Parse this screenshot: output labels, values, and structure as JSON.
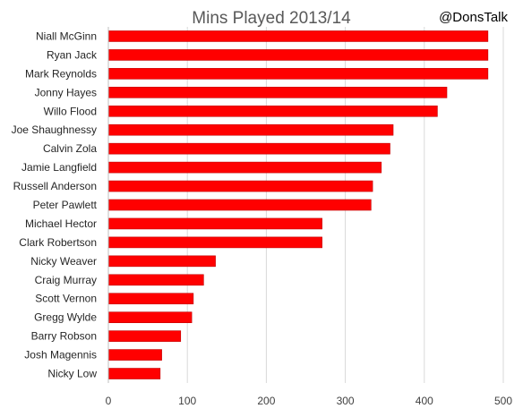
{
  "chart_data": {
    "type": "bar",
    "orientation": "horizontal",
    "title": "Mins Played 2013/14",
    "annotation": "@DonsTalk",
    "categories": [
      "Niall McGinn",
      "Ryan Jack",
      "Mark Reynolds",
      "Jonny Hayes",
      "Willo Flood",
      "Joe Shaughnessy",
      "Calvin Zola",
      "Jamie Langfield",
      "Russell Anderson",
      "Peter Pawlett",
      "Michael Hector",
      "Clark Robertson",
      "Nicky Weaver",
      "Craig Murray",
      "Scott Vernon",
      "Gregg Wylde",
      "Barry Robson",
      "Josh Magennis",
      "Nicky Low"
    ],
    "values": [
      480,
      480,
      480,
      428,
      416,
      360,
      356,
      345,
      334,
      332,
      270,
      270,
      135,
      120,
      107,
      105,
      91,
      67,
      65
    ],
    "xlim": [
      0,
      500
    ],
    "xticks": [
      "0",
      "100",
      "200",
      "300",
      "400",
      "500"
    ],
    "grid": true,
    "bar_color": "#ff0000",
    "bar_edge_color": "#c00000",
    "grid_color": "#d9d9d9"
  }
}
